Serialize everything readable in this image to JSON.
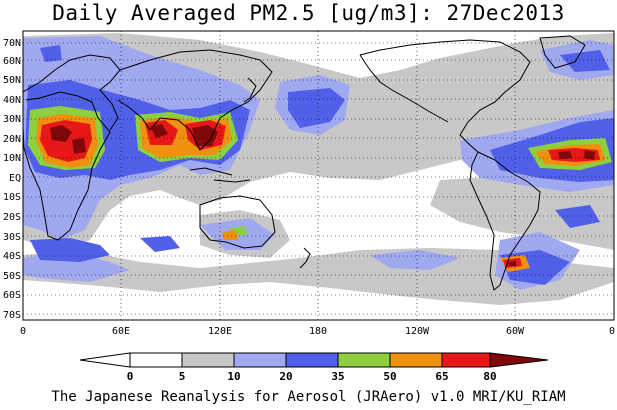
{
  "title": "Daily Averaged PM2.5 [ug/m3]: 27Dec2013",
  "footer": "The Japanese Reanalysis for Aerosol (JRAero) v1.0 MRI/KU_RIAM",
  "lat_labels": [
    "70N",
    "60N",
    "50N",
    "40N",
    "30N",
    "20N",
    "10N",
    "EQ",
    "10S",
    "20S",
    "30S",
    "40S",
    "50S",
    "60S",
    "70S"
  ],
  "lon_labels": [
    "0",
    "60E",
    "120E",
    "180",
    "120W",
    "60W",
    "0"
  ],
  "colorbar": {
    "labels": [
      "0",
      "5",
      "10",
      "20",
      "35",
      "50",
      "65",
      "80"
    ],
    "colors": [
      "#ffffff",
      "#ffffff",
      "#c8c8c8",
      "#a0a8f0",
      "#5060e8",
      "#8cd040",
      "#f09010",
      "#e81818",
      "#800808"
    ]
  },
  "levels": [
    {
      "name": "5",
      "color": "#c8c8c8"
    },
    {
      "name": "10",
      "color": "#a0a8f0"
    },
    {
      "name": "20",
      "color": "#5060e8"
    },
    {
      "name": "35",
      "color": "#8cd040"
    },
    {
      "name": "50",
      "color": "#f09010"
    },
    {
      "name": "65",
      "color": "#e81818"
    },
    {
      "name": "80",
      "color": "#800808"
    }
  ]
}
